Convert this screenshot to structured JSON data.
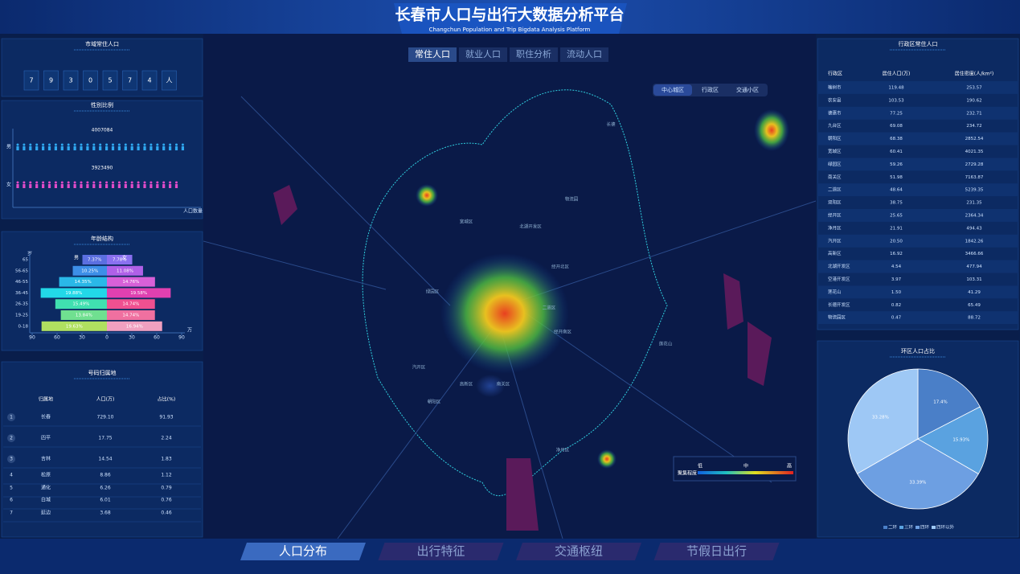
{
  "header": {
    "title": "长春市人口与出行大数据分析平台",
    "subtitle": "Changchun Population and Trip Bigdata Analysis Platform"
  },
  "population": {
    "title": "市域常住人口",
    "digits": [
      "7",
      "9",
      "3",
      "0",
      "5",
      "7",
      "4",
      "人"
    ]
  },
  "gender": {
    "title": "性别比例",
    "categories": [
      "男",
      "女"
    ],
    "values": [
      4007084,
      3923490
    ],
    "colors": [
      "#2fa8f0",
      "#e04cc8"
    ],
    "axis_label": "人口数量"
  },
  "age": {
    "title": "年龄结构",
    "type": "bar",
    "categories": [
      "65",
      "56-65",
      "46-55",
      "36-45",
      "26-35",
      "19-25",
      "0-18"
    ],
    "ylabel": "岁",
    "xlabel": "万",
    "series": [
      {
        "name": "男",
        "values": [
          29.5,
          41.1,
          57.5,
          79.7,
          62.1,
          55.5,
          78.7
        ],
        "percent_labels": [
          "7.37%",
          "10.25%",
          "14.35%",
          "19.88%",
          "15.49%",
          "13.84%",
          "19.63%"
        ],
        "colors": [
          "#5b6fe0",
          "#3d8fe8",
          "#2ab8e8",
          "#22d8e8",
          "#40e0b0",
          "#70e090",
          "#b0e060"
        ]
      },
      {
        "name": "女",
        "values": [
          30.5,
          43.5,
          57.9,
          76.8,
          57.8,
          57.8,
          66.5
        ],
        "percent_labels": [
          "7.78%",
          "11.08%",
          "14.76%",
          "19.58%",
          "14.74%",
          "14.74%",
          "16.94%"
        ],
        "colors": [
          "#8a70f0",
          "#b060e8",
          "#d860d8",
          "#e040b0",
          "#f05090",
          "#f070a0",
          "#f0a0c0"
        ]
      }
    ],
    "xlim": [
      -90,
      90
    ],
    "xticks": [
      {
        "value": -90,
        "label": "90"
      },
      {
        "value": -60,
        "label": "60"
      },
      {
        "value": -30,
        "label": "30"
      },
      0,
      30,
      60,
      90
    ]
  },
  "origin": {
    "title": "号码归属地",
    "columns": [
      "归属地",
      "人口(万)",
      "占比(%)"
    ],
    "rows": [
      [
        "1",
        "长春",
        "729.10",
        "91.93"
      ],
      [
        "2",
        "四平",
        "17.75",
        "2.24"
      ],
      [
        "3",
        "吉林",
        "14.54",
        "1.83"
      ],
      [
        "4",
        "松原",
        "8.86",
        "1.12"
      ],
      [
        "5",
        "通化",
        "6.26",
        "0.79"
      ],
      [
        "6",
        "白城",
        "6.01",
        "0.76"
      ],
      [
        "7",
        "延边",
        "3.68",
        "0.46"
      ]
    ]
  },
  "map": {
    "tabs": [
      "常住人口",
      "就业人口",
      "职住分析",
      "流动人口"
    ],
    "modes": [
      "中心城区",
      "行政区",
      "交通小区"
    ],
    "labels": [
      "宽城区",
      "北湖开发区",
      "经开北区",
      "绿园区",
      "二道区",
      "经开南区",
      "汽开区",
      "高新区",
      "南关区",
      "朝阳区",
      "净月区",
      "莲花山",
      "物流园",
      "长德"
    ],
    "legend": {
      "title": "聚集程度",
      "levels": [
        "低",
        "中",
        "高"
      ]
    }
  },
  "district": {
    "title": "行政区常住人口",
    "columns": [
      "行政区",
      "居住人口(万)",
      "居住密度(人/km²)"
    ],
    "rows": [
      [
        "榆树市",
        "119.48",
        "253.57"
      ],
      [
        "农安县",
        "103.53",
        "190.62"
      ],
      [
        "德惠市",
        "77.25",
        "232.71"
      ],
      [
        "九台区",
        "69.08",
        "234.72"
      ],
      [
        "朝阳区",
        "68.38",
        "2852.54"
      ],
      [
        "宽城区",
        "60.41",
        "4021.35"
      ],
      [
        "绿园区",
        "59.26",
        "2729.28"
      ],
      [
        "南关区",
        "51.98",
        "7163.87"
      ],
      [
        "二道区",
        "48.64",
        "5239.35"
      ],
      [
        "双阳区",
        "38.75",
        "231.35"
      ],
      [
        "经开区",
        "25.65",
        "2364.34"
      ],
      [
        "净月区",
        "21.91",
        "494.43"
      ],
      [
        "汽开区",
        "20.50",
        "1842.26"
      ],
      [
        "高新区",
        "16.92",
        "3466.66"
      ],
      [
        "北湖开发区",
        "4.54",
        "477.94"
      ],
      [
        "空港开发区",
        "3.97",
        "103.31"
      ],
      [
        "莲花山",
        "1.50",
        "41.29"
      ],
      [
        "长德开发区",
        "0.82",
        "65.49"
      ],
      [
        "物流园区",
        "0.47",
        "88.72"
      ]
    ]
  },
  "ring": {
    "title": "环区人口占比",
    "type": "pie",
    "categories": [
      "二环",
      "三环",
      "四环",
      "四环以外"
    ],
    "values": [
      17.4,
      15.93,
      33.39,
      33.28
    ],
    "value_labels": [
      "17.4%",
      "15.93%",
      "33.39%",
      "33.28%"
    ],
    "colors": [
      "#4a7fc8",
      "#5aa2e0",
      "#6d9fe2",
      "#9ec8f5"
    ]
  },
  "footer": {
    "tabs": [
      "人口分布",
      "出行特征",
      "交通枢纽",
      "节假日出行"
    ]
  }
}
